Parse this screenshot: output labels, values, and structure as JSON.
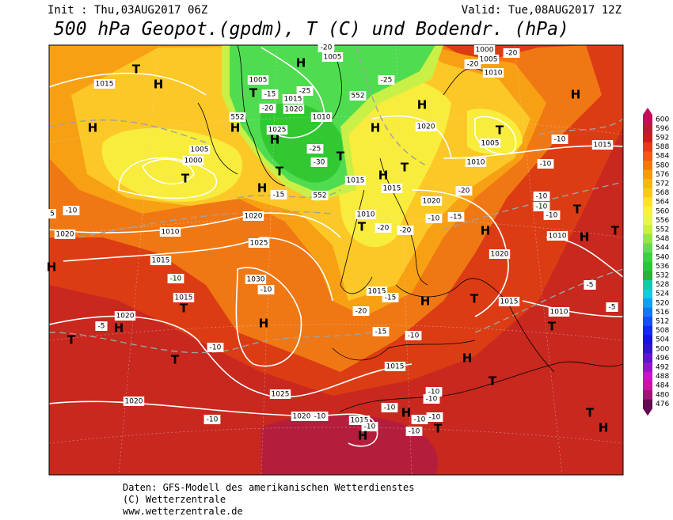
{
  "header": {
    "init": "Init : Thu,03AUG2017 06Z",
    "valid": "Valid: Tue,08AUG2017 12Z",
    "title": "500 hPa Geopot.(gpdm), T (C) und Bodendr. (hPa)"
  },
  "colorbar": {
    "levels": [
      600,
      596,
      592,
      588,
      584,
      580,
      576,
      572,
      568,
      564,
      560,
      556,
      552,
      548,
      544,
      540,
      536,
      532,
      528,
      524,
      520,
      516,
      512,
      508,
      504,
      500,
      496,
      492,
      488,
      484,
      480,
      476
    ],
    "colors": [
      "#c0105a",
      "#b41e32",
      "#c81e1e",
      "#e63c14",
      "#f05a14",
      "#f5780a",
      "#f89a0a",
      "#fab414",
      "#fcc81e",
      "#fde12d",
      "#f8f03c",
      "#e6f550",
      "#c8f046",
      "#96e646",
      "#64dc50",
      "#3cd23c",
      "#28c832",
      "#28b432",
      "#14c8aa",
      "#14c8e6",
      "#14a0f0",
      "#1478f0",
      "#1450f0",
      "#1428f0",
      "#1414dc",
      "#3214c8",
      "#6414c8",
      "#9614c8",
      "#c814c8",
      "#c814a0",
      "#a01478",
      "#640a50"
    ]
  },
  "map_labels": [
    "1015",
    "T",
    "H",
    "H",
    "1005",
    "1000",
    "T",
    "-10",
    "1020",
    "1010",
    "1015",
    "1020",
    "1025",
    "1030",
    "-10",
    "-10",
    "1015",
    "H",
    "T",
    "1020",
    "-5",
    "H",
    "T",
    "T",
    "-10",
    "1025",
    "1020",
    "-10",
    "1020",
    "-10",
    "H",
    "T",
    "1005",
    "1015",
    "1020",
    "1025",
    "H",
    "1010",
    "-20",
    "552",
    "H",
    "T",
    "-25",
    "-30",
    "T",
    "552",
    "H",
    "-15",
    "1005",
    "H",
    "-20",
    "-25",
    "-15",
    "552",
    "H",
    "H",
    "1020",
    "-25",
    "1015",
    "H",
    "T",
    "1015",
    "1010",
    "-20",
    "-20",
    "T",
    "1020",
    "-10",
    "-15",
    "H",
    "-20",
    "1010",
    "1005",
    "T",
    "1010",
    "1005",
    "1000",
    "-20",
    "-20",
    "H",
    "1015",
    "-10",
    "-10",
    "-10",
    "-10",
    "-10",
    "T",
    "1010",
    "H",
    "T",
    "1020",
    "1015",
    "T",
    "H",
    "1015",
    "-15",
    "-20",
    "-15",
    "-10",
    "1010",
    "-5",
    "-5",
    "T",
    "H",
    "T",
    "1015",
    "-10",
    "-10",
    "-10",
    "-10",
    "-10",
    "T",
    "-10",
    "H",
    "1015",
    "-10",
    "H",
    "T",
    "H",
    "5"
  ],
  "footer": [
    "Daten: GFS-Modell des amerikanischen Wetterdienstes",
    "(C) Wetterzentrale",
    "www.wetterzentrale.de"
  ]
}
